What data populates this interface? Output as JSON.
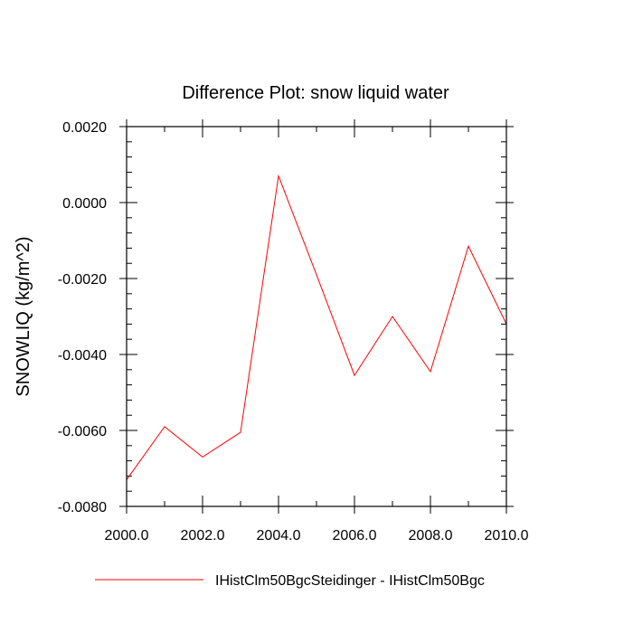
{
  "chart_data": {
    "type": "line",
    "title": "Difference Plot: snow liquid water",
    "ylabel": "SNOWLIQ  (kg/m^2)",
    "xlabel": "",
    "xlim": [
      2000,
      2010
    ],
    "ylim": [
      -0.008,
      0.002
    ],
    "x_ticks": [
      "2000.0",
      "2002.0",
      "2004.0",
      "2006.0",
      "2008.0",
      "2010.0"
    ],
    "y_ticks": [
      "0.0020",
      "0.0000",
      "-0.0020",
      "-0.0040",
      "-0.0060",
      "-0.0080"
    ],
    "grid": false,
    "legend_position": "bottom",
    "series": [
      {
        "name": "IHistClm50BgcSteidinger - IHistClm50Bgc",
        "color": "#ff0000",
        "x": [
          2000,
          2001,
          2002,
          2003,
          2004,
          2005,
          2006,
          2007,
          2008,
          2009,
          2010
        ],
        "values": [
          -0.0073,
          -0.0059,
          -0.0067,
          -0.00605,
          0.0007,
          -0.0019,
          -0.00455,
          -0.003,
          -0.00445,
          -0.00115,
          -0.0032
        ]
      }
    ]
  }
}
